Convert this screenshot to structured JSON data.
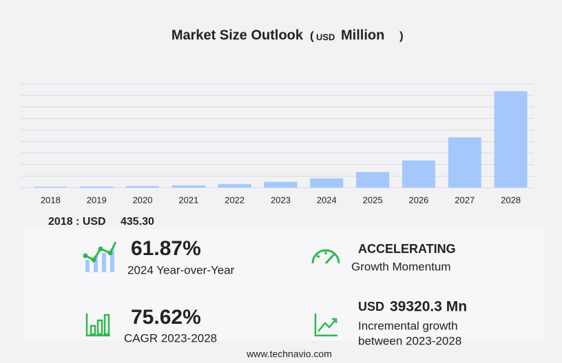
{
  "chart_data": {
    "type": "bar",
    "title": "Market Size Outlook",
    "unit": {
      "open": "(",
      "currency": "USD",
      "name": "Million",
      "close": ")"
    },
    "categories": [
      "2018",
      "2019",
      "2020",
      "2021",
      "2022",
      "2023",
      "2024",
      "2025",
      "2026",
      "2027",
      "2028"
    ],
    "values": [
      435.3,
      530,
      700,
      1000,
      1550,
      2504,
      4053,
      6785,
      11800,
      21830,
      41824
    ],
    "color": "#a4c8fb",
    "ylim": [
      0,
      45000
    ],
    "yticks": [
      0,
      5000,
      10000,
      15000,
      20000,
      25000,
      30000,
      35000,
      40000,
      45000
    ],
    "grid": true
  },
  "base": {
    "label": "2018 : USD",
    "value": {
      "value": 435.3,
      "label": "435.30"
    }
  },
  "stats": [
    {
      "value": "61.87%",
      "caption": "2024 Year-over-Year"
    },
    {
      "value": "ACCELERATING",
      "caption": "Growth Momentum"
    },
    {
      "value": "75.62%",
      "caption": "CAGR 2023-2028"
    },
    {
      "prefix": "USD",
      "value": "39320.3 Mn",
      "caption": "Incremental growth",
      "caption2": "between 2023-2028"
    }
  ],
  "footer": "www.technavio.com"
}
